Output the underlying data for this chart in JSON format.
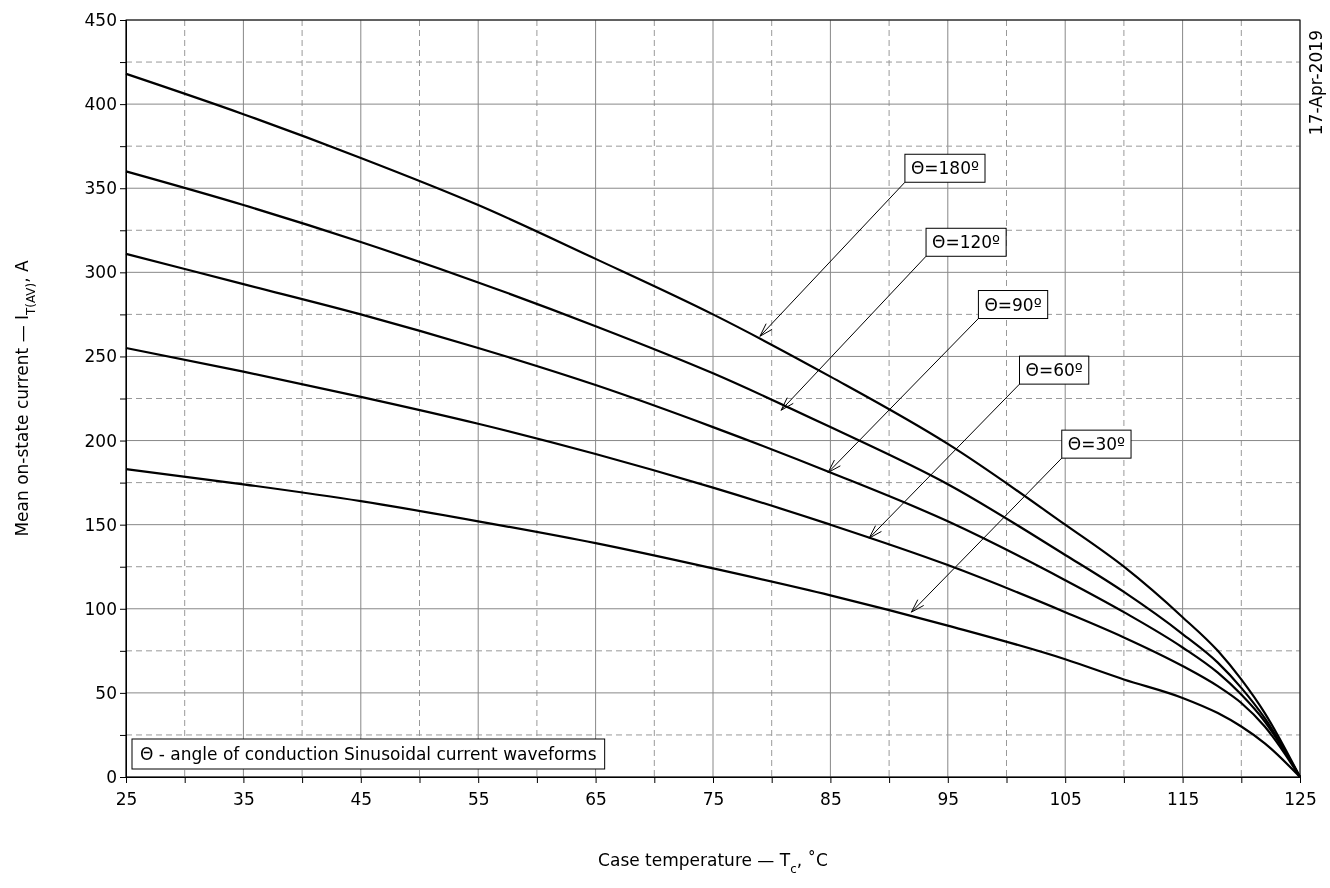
{
  "chart_data": {
    "type": "line",
    "xlabel": "Case temperature — T$_{c}$, ˚C",
    "ylabel": "Mean on-state current — I$_{T(AV)}$, A",
    "x": [
      25,
      35,
      45,
      55,
      65,
      75,
      85,
      95,
      105,
      110,
      115,
      118,
      120,
      122,
      125
    ],
    "xlim": [
      25,
      125
    ],
    "ylim": [
      0,
      450
    ],
    "xticks": [
      25,
      {
        "value": 30,
        "label": null
      },
      35,
      {
        "value": 40,
        "label": null
      },
      45,
      {
        "value": 50,
        "label": null
      },
      55,
      {
        "value": 60,
        "label": null
      },
      65,
      {
        "value": 70,
        "label": null
      },
      75,
      {
        "value": 80,
        "label": null
      },
      85,
      {
        "value": 90,
        "label": null
      },
      95,
      {
        "value": 100,
        "label": null
      },
      105,
      {
        "value": 110,
        "label": null
      },
      115,
      {
        "value": 120,
        "label": null
      },
      125
    ],
    "yticks": [
      0,
      {
        "value": 25,
        "label": null
      },
      50,
      {
        "value": 75,
        "label": null
      },
      100,
      {
        "value": 125,
        "label": null
      },
      150,
      {
        "value": 175,
        "label": null
      },
      200,
      {
        "value": 225,
        "label": null
      },
      250,
      {
        "value": 275,
        "label": null
      },
      300,
      {
        "value": 325,
        "label": null
      },
      350,
      {
        "value": 375,
        "label": null
      },
      400,
      {
        "value": 425,
        "label": null
      },
      450
    ],
    "grid": true,
    "marker": "none",
    "line_style": "solid",
    "series": [
      {
        "color": "#000000",
        "values": [
          418,
          394,
          368,
          340,
          308,
          275,
          238,
          198,
          150,
          125,
          95,
          75,
          58,
          38,
          0
        ]
      },
      {
        "color": "#000000",
        "values": [
          360,
          340,
          318,
          294,
          268,
          240,
          208,
          174,
          132,
          110,
          85,
          68,
          53,
          35,
          0
        ]
      },
      {
        "color": "#000000",
        "values": [
          311,
          293,
          275,
          255,
          233,
          208,
          181,
          152,
          117,
          98,
          77,
          62,
          49,
          33,
          0
        ]
      },
      {
        "color": "#000000",
        "values": [
          255,
          241,
          226,
          210,
          192,
          172,
          150,
          126,
          98,
          83,
          66,
          54,
          44,
          30,
          0
        ]
      },
      {
        "color": "#000000",
        "values": [
          183,
          174,
          164,
          152,
          139,
          124,
          108,
          90,
          70,
          58,
          47,
          38,
          30,
          20,
          0
        ]
      }
    ],
    "annotations": [
      {
        "text": "Θ=180º",
        "x": 79,
        "y": 262
      },
      {
        "text": "Θ=120º",
        "x": 80.8,
        "y": 218
      },
      {
        "text": "Θ=90º",
        "x": 84.8,
        "y": 181
      },
      {
        "text": "Θ=60º",
        "x": 88.3,
        "y": 142
      },
      {
        "text": "Θ=30º",
        "x": 91.9,
        "y": 98
      },
      "Θ - angle of conduction Sinusoidal current waveforms",
      "17-Apr-2019"
    ]
  }
}
